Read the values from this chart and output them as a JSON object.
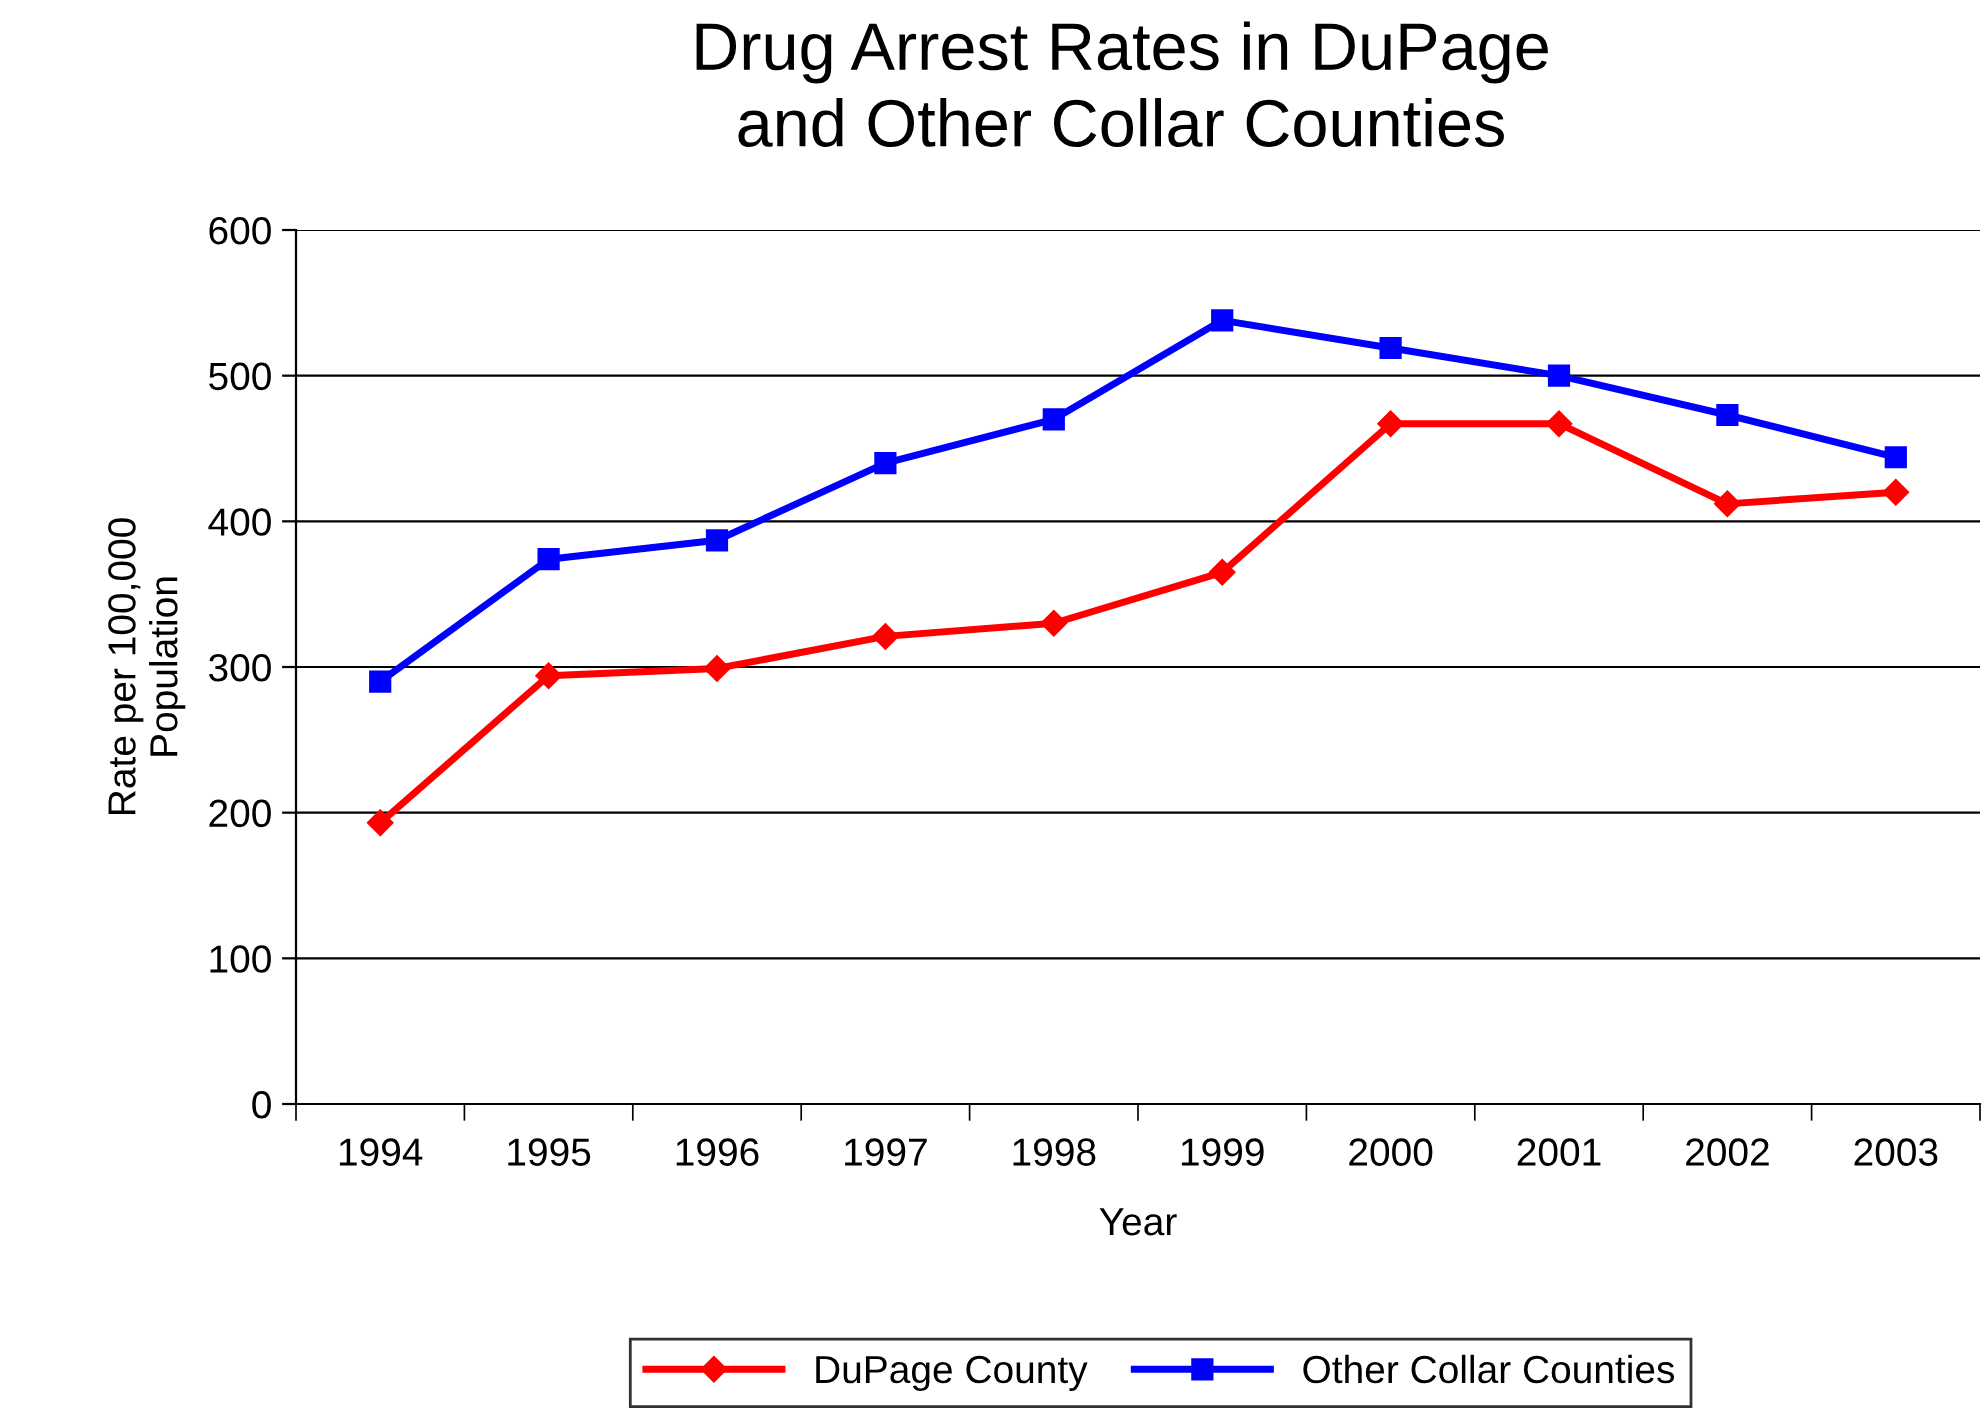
{
  "chart_data": {
    "type": "line",
    "title": "Drug Arrest Rates in DuPage\nand Other Collar Counties",
    "xlabel": "Year",
    "ylabel": "Rate per 100,000\nPopulation",
    "categories": [
      "1994",
      "1995",
      "1996",
      "1997",
      "1998",
      "1999",
      "2000",
      "2001",
      "2002",
      "2003"
    ],
    "series": [
      {
        "name": "DuPage County",
        "color": "#ff0000",
        "marker": "diamond",
        "values": [
          193,
          294,
          299,
          321,
          330,
          365,
          467,
          467,
          412,
          420
        ]
      },
      {
        "name": "Other Collar Counties",
        "color": "#0000ff",
        "marker": "square",
        "values": [
          290,
          374,
          387,
          440,
          470,
          538,
          519,
          500,
          473,
          444
        ]
      }
    ],
    "ylim": [
      0,
      600
    ],
    "yticks": [
      0,
      100,
      200,
      300,
      400,
      500,
      600
    ],
    "grid": "y",
    "legend": "bottom"
  }
}
